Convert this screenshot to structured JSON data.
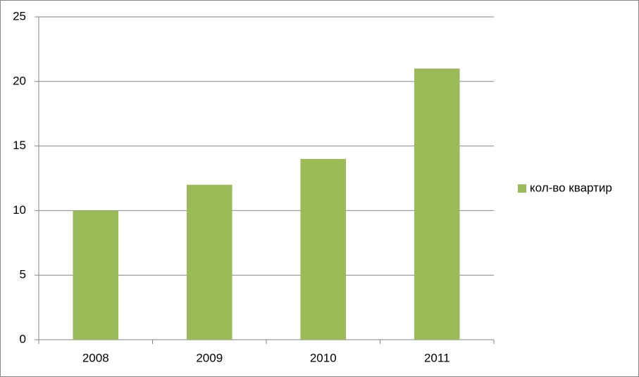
{
  "chart_data": {
    "type": "bar",
    "categories": [
      "2008",
      "2009",
      "2010",
      "2011"
    ],
    "series": [
      {
        "name": "кол-во квартир",
        "color": "#9bbb59",
        "values": [
          10,
          12,
          14,
          21
        ]
      }
    ],
    "ylim": [
      0,
      25
    ],
    "yticks": [
      0,
      5,
      10,
      15,
      20,
      25
    ],
    "grid": true,
    "legend": "right"
  }
}
